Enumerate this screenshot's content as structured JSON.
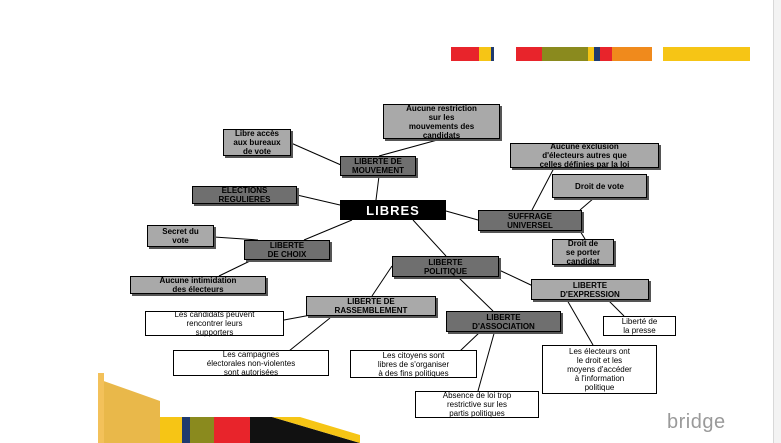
{
  "brand": {
    "name": "bridge"
  },
  "colors": {
    "red": "#e8242b",
    "olive": "#8a8a1e",
    "navy": "#1f3a6e",
    "orange": "#f08a1c",
    "yellow": "#f6c515",
    "gold": "#e9b84a",
    "dark_node": "#6f6f6f",
    "mid_node": "#a9a9a9",
    "center_node": "#000000"
  },
  "diagram": {
    "center": "LIBRES",
    "nodes": {
      "liberte_mouvement": "LIBERTE DE\nMOUVEMENT",
      "aucune_restriction": "Aucune restriction\nsur les\nmouvements des\ncandidats",
      "libre_acces": "Libre accès\naux bureaux\nde vote",
      "elections": "ELECTIONS\nREGULIERES",
      "aucune_exclusion": "Aucune exclusion\nd'électeurs autres que\ncelles définies par la loi",
      "droit_vote": "Droit de vote",
      "suffrage": "SUFFRAGE\nUNIVERSEL",
      "droit_candidat": "Droit de\nse porter\ncandidat",
      "secret": "Secret du\nvote",
      "liberte_choix": "LIBERTE\nDE CHOIX",
      "aucune_intimidation": "Aucune intimidation\ndes électeurs",
      "liberte_politique": "LIBERTE\nPOLITIQUE",
      "liberte_expression": "LIBERTE\nD'EXPRESSION",
      "liberte_rassemblement": "LIBERTE DE\nRASSEMBLEMENT",
      "candidats_rencontrer": "Les candidats peuvent\nrencontrer leurs\nsupporters",
      "liberte_presse": "Liberté de\nla presse",
      "liberte_association": "LIBERTE\nD'ASSOCIATION",
      "campagnes": "Les campagnes\nélectorales non-violentes\nsont autorisées",
      "citoyens": "Les citoyens sont\nlibres de s'organiser\nà des fins politiques",
      "electeurs_droit": "Les électeurs ont\nle droit et les\nmoyens d'accéder\nà l'information\npolitique",
      "absence_loi": "Absence de loi trop\nrestrictive sur les\npartis politiques"
    }
  }
}
